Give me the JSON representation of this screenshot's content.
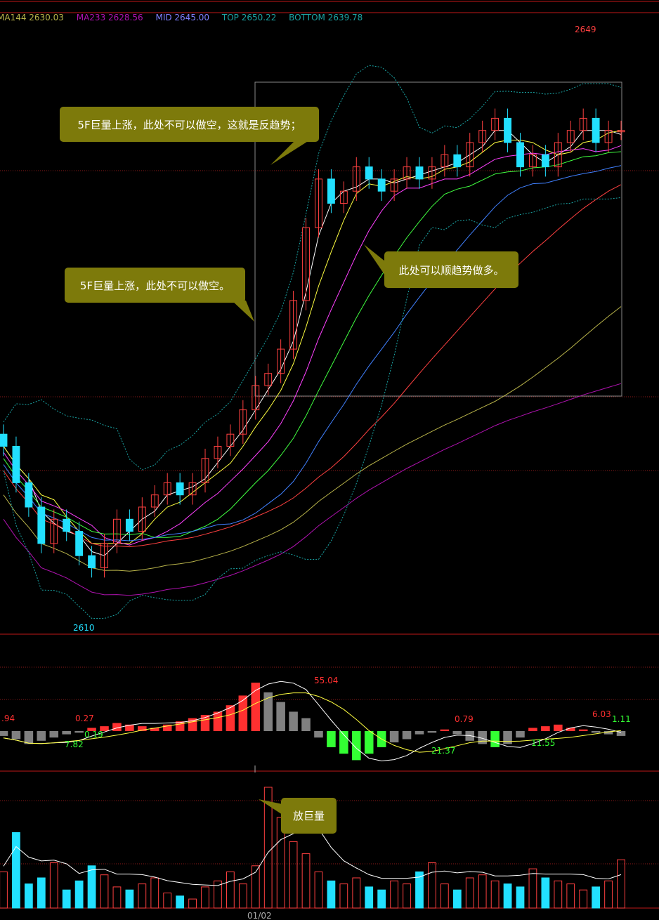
{
  "legend": [
    {
      "text": "MA144 2630.03",
      "color": "#b9b44a"
    },
    {
      "text": "MA233 2628.56",
      "color": "#b012b0"
    },
    {
      "text": "MID 2645.00",
      "color": "#7f7fff"
    },
    {
      "text": "TOP 2650.22",
      "color": "#1aa4a4"
    },
    {
      "text": "BOTTOM 2639.78",
      "color": "#1aa4a4"
    }
  ],
  "annotations": {
    "note1": "5F巨量上涨，此处不可以做空，这就是反趋势；",
    "note2": "5F巨量上涨，此处不可以做空。",
    "note3": "此处可以顺趋势做多。",
    "note4": "放巨量"
  },
  "price_labels": {
    "high": "2649",
    "low": "2610"
  },
  "macd_labels": [
    {
      "text": ".94",
      "color": "#ff3030"
    },
    {
      "text": "0.27",
      "color": "#ff3030"
    },
    {
      "text": "0.19",
      "color": "#33ff33"
    },
    {
      "text": "7.82",
      "color": "#33ff33"
    },
    {
      "text": "55.04",
      "color": "#ff3030"
    },
    {
      "text": "21.37",
      "color": "#33ff33"
    },
    {
      "text": "0.79",
      "color": "#ff3030"
    },
    {
      "text": "11.55",
      "color": "#33ff33"
    },
    {
      "text": "6.03",
      "color": "#ff3030"
    },
    {
      "text": "1.11",
      "color": "#33ff33"
    }
  ],
  "date_label": "01/02",
  "colors": {
    "up": "#ff4040",
    "down": "#22e0ff",
    "macd_pos": "#ff3030",
    "macd_neg_green": "#33ff33",
    "macd_gray": "#808080",
    "grid": "#8a1a1a",
    "note_bg": "#7d7a0b"
  },
  "chart_data": {
    "type": "candlestick",
    "price_range": [
      2605,
      2655
    ],
    "high": 2649,
    "low": 2610,
    "close_path": [
      2620,
      2617,
      2615,
      2612,
      2614,
      2613,
      2611,
      2610,
      2612,
      2614,
      2613,
      2615,
      2616,
      2617,
      2616,
      2617,
      2619,
      2620,
      2621,
      2623,
      2625,
      2626,
      2628,
      2632,
      2638,
      2642,
      2640,
      2641,
      2643,
      2642,
      2641,
      2642,
      2643,
      2642,
      2643,
      2644,
      2643,
      2645,
      2646,
      2647,
      2645,
      2643,
      2644,
      2643,
      2645,
      2646,
      2647,
      2645,
      2646,
      2646
    ],
    "macd_values": [
      -3,
      -5,
      -8,
      -6,
      -4,
      -2,
      -1,
      2,
      3,
      5,
      4,
      3,
      2,
      4,
      6,
      8,
      10,
      12,
      16,
      22,
      30,
      24,
      18,
      12,
      8,
      -4,
      -10,
      -14,
      -18,
      -14,
      -10,
      -7,
      -5,
      -2,
      -1,
      1,
      -2,
      -6,
      -8,
      -10,
      -8,
      -4,
      2,
      3,
      4,
      2,
      1,
      -1,
      -2,
      -3
    ],
    "volume_values": [
      12,
      25,
      8,
      10,
      15,
      6,
      9,
      14,
      11,
      7,
      6,
      8,
      10,
      5,
      4,
      3,
      7,
      9,
      12,
      8,
      14,
      40,
      30,
      22,
      18,
      12,
      9,
      8,
      10,
      7,
      6,
      9,
      8,
      12,
      15,
      8,
      6,
      10,
      11,
      9,
      8,
      7,
      13,
      10,
      9,
      8,
      6,
      7,
      9,
      16
    ]
  }
}
